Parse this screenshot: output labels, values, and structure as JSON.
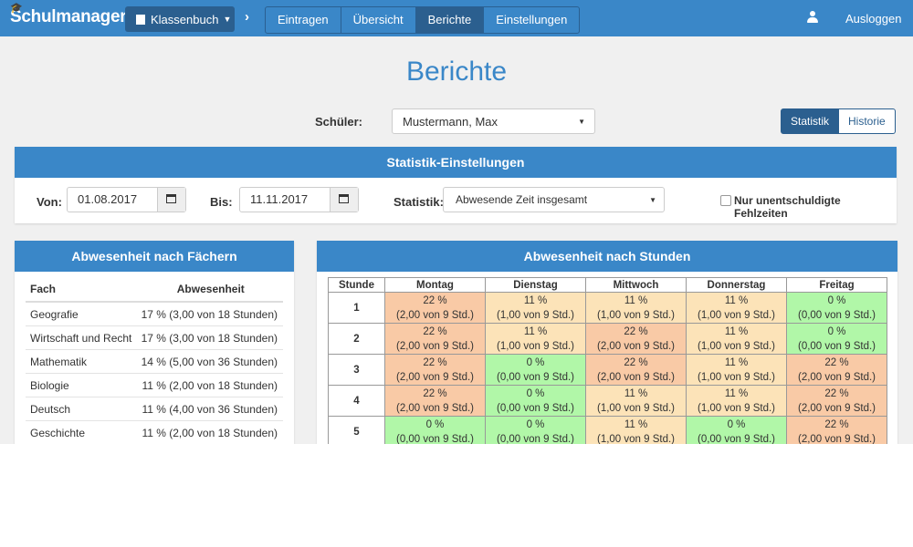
{
  "navbar": {
    "brand": "Schulmanager",
    "klassenbuch": "Klassenbuch",
    "tabs": [
      "Eintragen",
      "Übersicht",
      "Berichte",
      "Einstellungen"
    ],
    "active_tab": "Berichte",
    "logout": "Ausloggen"
  },
  "page": {
    "title": "Berichte"
  },
  "student": {
    "label": "Schüler:",
    "value": "Mustermann, Max"
  },
  "view_toggle": {
    "statistik": "Statistik",
    "historie": "Historie",
    "active": "Statistik"
  },
  "settings": {
    "header": "Statistik-Einstellungen",
    "von_label": "Von:",
    "von_value": "01.08.2017",
    "bis_label": "Bis:",
    "bis_value": "11.11.2017",
    "statistik_label": "Statistik:",
    "statistik_value": "Abwesende Zeit insgesamt",
    "checkbox_label": "Nur unentschuldigte Fehlzeiten",
    "checkbox_checked": false
  },
  "faecher": {
    "header": "Abwesenheit nach Fächern",
    "col_fach": "Fach",
    "col_abwesenheit": "Abwesenheit",
    "rows": [
      {
        "fach": "Geografie",
        "abwesenheit": "17 % (3,00 von 18 Stunden)"
      },
      {
        "fach": "Wirtschaft und Recht",
        "abwesenheit": "17 % (3,00 von 18 Stunden)"
      },
      {
        "fach": "Mathematik",
        "abwesenheit": "14 % (5,00 von 36 Stunden)"
      },
      {
        "fach": "Biologie",
        "abwesenheit": "11 % (2,00 von 18 Stunden)"
      },
      {
        "fach": "Deutsch",
        "abwesenheit": "11 % (4,00 von 36 Stunden)"
      },
      {
        "fach": "Geschichte",
        "abwesenheit": "11 % (2,00 von 18 Stunden)"
      }
    ]
  },
  "stunden": {
    "header": "Abwesenheit nach Stunden",
    "col_stunde": "Stunde",
    "days": [
      "Montag",
      "Dienstag",
      "Mittwoch",
      "Donnerstag",
      "Freitag"
    ],
    "colors": {
      "high": "#f9caa6",
      "mid": "#fce3b8",
      "none": "#b1f7a8"
    },
    "rows": [
      {
        "stunde": "1",
        "cells": [
          {
            "pct": "22 %",
            "detail": "(2,00 von 9 Std.)",
            "level": "high"
          },
          {
            "pct": "11 %",
            "detail": "(1,00 von 9 Std.)",
            "level": "mid"
          },
          {
            "pct": "11 %",
            "detail": "(1,00 von 9 Std.)",
            "level": "mid"
          },
          {
            "pct": "11 %",
            "detail": "(1,00 von 9 Std.)",
            "level": "mid"
          },
          {
            "pct": "0 %",
            "detail": "(0,00 von 9 Std.)",
            "level": "none"
          }
        ]
      },
      {
        "stunde": "2",
        "cells": [
          {
            "pct": "22 %",
            "detail": "(2,00 von 9 Std.)",
            "level": "high"
          },
          {
            "pct": "11 %",
            "detail": "(1,00 von 9 Std.)",
            "level": "mid"
          },
          {
            "pct": "22 %",
            "detail": "(2,00 von 9 Std.)",
            "level": "high"
          },
          {
            "pct": "11 %",
            "detail": "(1,00 von 9 Std.)",
            "level": "mid"
          },
          {
            "pct": "0 %",
            "detail": "(0,00 von 9 Std.)",
            "level": "none"
          }
        ]
      },
      {
        "stunde": "3",
        "cells": [
          {
            "pct": "22 %",
            "detail": "(2,00 von 9 Std.)",
            "level": "high"
          },
          {
            "pct": "0 %",
            "detail": "(0,00 von 9 Std.)",
            "level": "none"
          },
          {
            "pct": "22 %",
            "detail": "(2,00 von 9 Std.)",
            "level": "high"
          },
          {
            "pct": "11 %",
            "detail": "(1,00 von 9 Std.)",
            "level": "mid"
          },
          {
            "pct": "22 %",
            "detail": "(2,00 von 9 Std.)",
            "level": "high"
          }
        ]
      },
      {
        "stunde": "4",
        "cells": [
          {
            "pct": "22 %",
            "detail": "(2,00 von 9 Std.)",
            "level": "high"
          },
          {
            "pct": "0 %",
            "detail": "(0,00 von 9 Std.)",
            "level": "none"
          },
          {
            "pct": "11 %",
            "detail": "(1,00 von 9 Std.)",
            "level": "mid"
          },
          {
            "pct": "11 %",
            "detail": "(1,00 von 9 Std.)",
            "level": "mid"
          },
          {
            "pct": "22 %",
            "detail": "(2,00 von 9 Std.)",
            "level": "high"
          }
        ]
      },
      {
        "stunde": "5",
        "cells": [
          {
            "pct": "0 %",
            "detail": "(0,00 von 9 Std.)",
            "level": "none"
          },
          {
            "pct": "0 %",
            "detail": "(0,00 von 9 Std.)",
            "level": "none"
          },
          {
            "pct": "11 %",
            "detail": "(1,00 von 9 Std.)",
            "level": "mid"
          },
          {
            "pct": "0 %",
            "detail": "(0,00 von 9 Std.)",
            "level": "none"
          },
          {
            "pct": "22 %",
            "detail": "(2,00 von 9 Std.)",
            "level": "high"
          }
        ]
      }
    ]
  }
}
